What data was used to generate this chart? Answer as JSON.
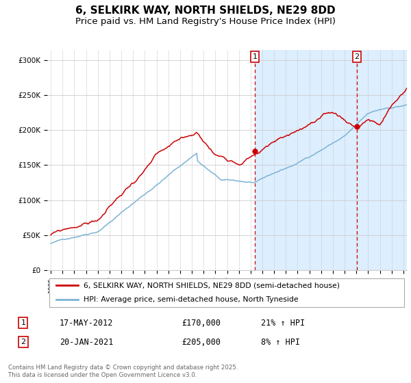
{
  "title": "6, SELKIRK WAY, NORTH SHIELDS, NE29 8DD",
  "subtitle": "Price paid vs. HM Land Registry's House Price Index (HPI)",
  "ylabel_ticks": [
    "£0",
    "£50K",
    "£100K",
    "£150K",
    "£200K",
    "£250K",
    "£300K"
  ],
  "ytick_values": [
    0,
    50000,
    100000,
    150000,
    200000,
    250000,
    300000
  ],
  "ylim": [
    0,
    315000
  ],
  "xlim_start": 1995.0,
  "xlim_end": 2025.3,
  "purchase1_year": 2012.37,
  "purchase1_price": 170000,
  "purchase2_year": 2021.05,
  "purchase2_price": 205000,
  "legend_line1": "6, SELKIRK WAY, NORTH SHIELDS, NE29 8DD (semi-detached house)",
  "legend_line2": "HPI: Average price, semi-detached house, North Tyneside",
  "footer": "Contains HM Land Registry data © Crown copyright and database right 2025.\nThis data is licensed under the Open Government Licence v3.0.",
  "hpi_color": "#7ab3d4",
  "price_color": "#cc0000",
  "bg_shaded_color": "#ddeeff",
  "grid_color": "#cccccc",
  "title_fontsize": 11,
  "subtitle_fontsize": 9.5,
  "tick_fontsize": 7.5
}
